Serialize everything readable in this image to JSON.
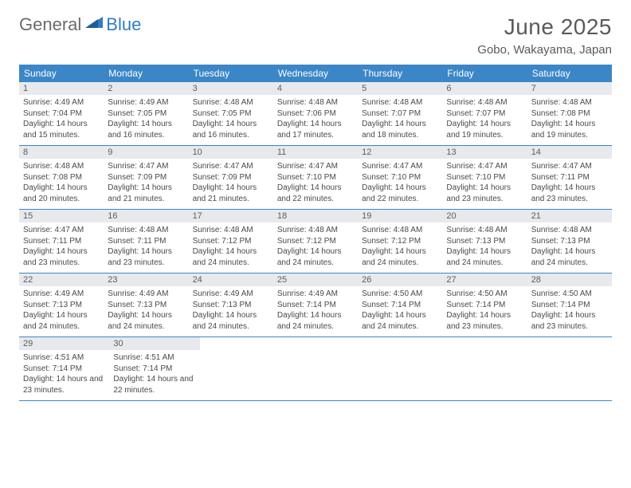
{
  "brand": {
    "part1": "General",
    "part2": "Blue"
  },
  "title": "June 2025",
  "location": "Gobo, Wakayama, Japan",
  "colors": {
    "header_bg": "#3b86c7",
    "header_text": "#ffffff",
    "daynum_bg": "#e7e9ec",
    "rule": "#3b86c7",
    "logo_gray": "#6b6b6b",
    "logo_blue": "#2f7ec2"
  },
  "day_headers": [
    "Sunday",
    "Monday",
    "Tuesday",
    "Wednesday",
    "Thursday",
    "Friday",
    "Saturday"
  ],
  "weeks": [
    [
      {
        "n": "1",
        "sr": "4:49 AM",
        "ss": "7:04 PM",
        "dl": "14 hours and 15 minutes."
      },
      {
        "n": "2",
        "sr": "4:49 AM",
        "ss": "7:05 PM",
        "dl": "14 hours and 16 minutes."
      },
      {
        "n": "3",
        "sr": "4:48 AM",
        "ss": "7:05 PM",
        "dl": "14 hours and 16 minutes."
      },
      {
        "n": "4",
        "sr": "4:48 AM",
        "ss": "7:06 PM",
        "dl": "14 hours and 17 minutes."
      },
      {
        "n": "5",
        "sr": "4:48 AM",
        "ss": "7:07 PM",
        "dl": "14 hours and 18 minutes."
      },
      {
        "n": "6",
        "sr": "4:48 AM",
        "ss": "7:07 PM",
        "dl": "14 hours and 19 minutes."
      },
      {
        "n": "7",
        "sr": "4:48 AM",
        "ss": "7:08 PM",
        "dl": "14 hours and 19 minutes."
      }
    ],
    [
      {
        "n": "8",
        "sr": "4:48 AM",
        "ss": "7:08 PM",
        "dl": "14 hours and 20 minutes."
      },
      {
        "n": "9",
        "sr": "4:47 AM",
        "ss": "7:09 PM",
        "dl": "14 hours and 21 minutes."
      },
      {
        "n": "10",
        "sr": "4:47 AM",
        "ss": "7:09 PM",
        "dl": "14 hours and 21 minutes."
      },
      {
        "n": "11",
        "sr": "4:47 AM",
        "ss": "7:10 PM",
        "dl": "14 hours and 22 minutes."
      },
      {
        "n": "12",
        "sr": "4:47 AM",
        "ss": "7:10 PM",
        "dl": "14 hours and 22 minutes."
      },
      {
        "n": "13",
        "sr": "4:47 AM",
        "ss": "7:10 PM",
        "dl": "14 hours and 23 minutes."
      },
      {
        "n": "14",
        "sr": "4:47 AM",
        "ss": "7:11 PM",
        "dl": "14 hours and 23 minutes."
      }
    ],
    [
      {
        "n": "15",
        "sr": "4:47 AM",
        "ss": "7:11 PM",
        "dl": "14 hours and 23 minutes."
      },
      {
        "n": "16",
        "sr": "4:48 AM",
        "ss": "7:11 PM",
        "dl": "14 hours and 23 minutes."
      },
      {
        "n": "17",
        "sr": "4:48 AM",
        "ss": "7:12 PM",
        "dl": "14 hours and 24 minutes."
      },
      {
        "n": "18",
        "sr": "4:48 AM",
        "ss": "7:12 PM",
        "dl": "14 hours and 24 minutes."
      },
      {
        "n": "19",
        "sr": "4:48 AM",
        "ss": "7:12 PM",
        "dl": "14 hours and 24 minutes."
      },
      {
        "n": "20",
        "sr": "4:48 AM",
        "ss": "7:13 PM",
        "dl": "14 hours and 24 minutes."
      },
      {
        "n": "21",
        "sr": "4:48 AM",
        "ss": "7:13 PM",
        "dl": "14 hours and 24 minutes."
      }
    ],
    [
      {
        "n": "22",
        "sr": "4:49 AM",
        "ss": "7:13 PM",
        "dl": "14 hours and 24 minutes."
      },
      {
        "n": "23",
        "sr": "4:49 AM",
        "ss": "7:13 PM",
        "dl": "14 hours and 24 minutes."
      },
      {
        "n": "24",
        "sr": "4:49 AM",
        "ss": "7:13 PM",
        "dl": "14 hours and 24 minutes."
      },
      {
        "n": "25",
        "sr": "4:49 AM",
        "ss": "7:14 PM",
        "dl": "14 hours and 24 minutes."
      },
      {
        "n": "26",
        "sr": "4:50 AM",
        "ss": "7:14 PM",
        "dl": "14 hours and 24 minutes."
      },
      {
        "n": "27",
        "sr": "4:50 AM",
        "ss": "7:14 PM",
        "dl": "14 hours and 23 minutes."
      },
      {
        "n": "28",
        "sr": "4:50 AM",
        "ss": "7:14 PM",
        "dl": "14 hours and 23 minutes."
      }
    ],
    [
      {
        "n": "29",
        "sr": "4:51 AM",
        "ss": "7:14 PM",
        "dl": "14 hours and 23 minutes."
      },
      {
        "n": "30",
        "sr": "4:51 AM",
        "ss": "7:14 PM",
        "dl": "14 hours and 22 minutes."
      },
      null,
      null,
      null,
      null,
      null
    ]
  ],
  "labels": {
    "sunrise": "Sunrise:",
    "sunset": "Sunset:",
    "daylight": "Daylight:"
  }
}
